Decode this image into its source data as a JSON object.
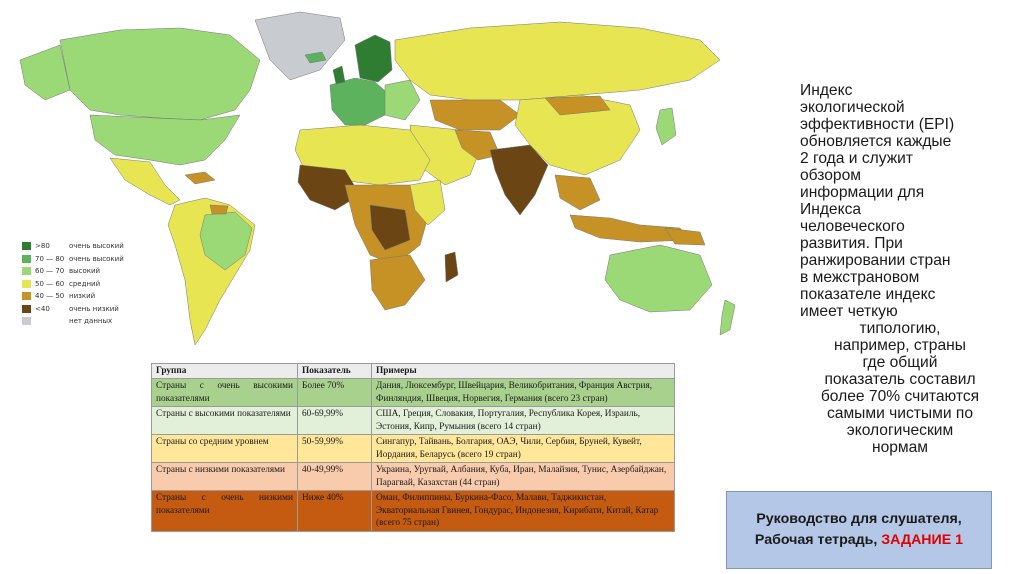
{
  "legend": {
    "items": [
      {
        "range": ">80",
        "label": "очень высокий",
        "color": "#2e7d32"
      },
      {
        "range": "70 — 80",
        "label": "очень высокий",
        "color": "#5db35d"
      },
      {
        "range": "60 — 70",
        "label": "высокий",
        "color": "#9bd876"
      },
      {
        "range": "50 — 60",
        "label": "средний",
        "color": "#e8e552"
      },
      {
        "range": "40 — 50",
        "label": "низкий",
        "color": "#c69226"
      },
      {
        "range": "<40",
        "label": "очень низкий",
        "color": "#6b4513"
      },
      {
        "range": "",
        "label": "нет данных",
        "color": "#c8ccd1"
      }
    ]
  },
  "table": {
    "headers": [
      "Группа",
      "Показатель",
      "Примеры"
    ],
    "rows": [
      {
        "group": "Страны с очень высокими показателями",
        "value": "Более 70%",
        "examples": "Дания, Люксембург, Швейцария, Великобритания, Франция Австрия, Финляндия, Швеция, Норвегия, Германия (всего 23 стран)",
        "color": "#a9d18e"
      },
      {
        "group": "Страны с высокими показателями",
        "value": "60-69,99%",
        "examples": "США, Греция, Словакия, Португалия, Республика Корея, Израиль, Эстония, Кипр, Румыния (всего 14 стран)",
        "color": "#e2efd9"
      },
      {
        "group": "Страны со средним уровнем",
        "value": "50-59,99%",
        "examples": "Сингапур, Тайвань, Болгария, ОАЭ, Чили, Сербия, Бруней, Кувейт, Иордания, Беларусь (всего 19 стран)",
        "color": "#ffe699"
      },
      {
        "group": "Страны с низкими показателями",
        "value": "40-49,99%",
        "examples": "Украина, Уругвай, Албания, Куба, Иран, Малайзия, Тунис, Азербайджан, Парагвай, Казахстан (44 стран)",
        "color": "#f8cbad"
      },
      {
        "group": "Страны с очень низкими показателями",
        "value": "Ниже 40%",
        "examples": "Оман, Филиппины, Буркина-Фасо, Малави, Таджикистан, Экваториальная Гвинея, Гондурас, Индонезия, Кирибати, Китай, Катар (всего 75 стран)",
        "color": "#c55a11"
      }
    ]
  },
  "description": {
    "lines": [
      "Индекс",
      "экологической",
      "эффективности (EPI)",
      "обновляется каждые",
      "2 года и служит",
      "обзором",
      "информации для",
      "Индекса",
      "человеческого",
      "развития. При",
      "ранжировании стран",
      "в межстрановом",
      "показателе индекс",
      "имеет четкую",
      "типологию,",
      "например, страны",
      "где общий",
      "показатель составил",
      "более 70% считаются",
      "самыми чистыми по",
      "экологическим",
      "нормам"
    ]
  },
  "guide": {
    "line1": "Руководство для слушателя,",
    "line2": "Рабочая тетрадь,",
    "task": "ЗАДАНИЕ 1"
  }
}
